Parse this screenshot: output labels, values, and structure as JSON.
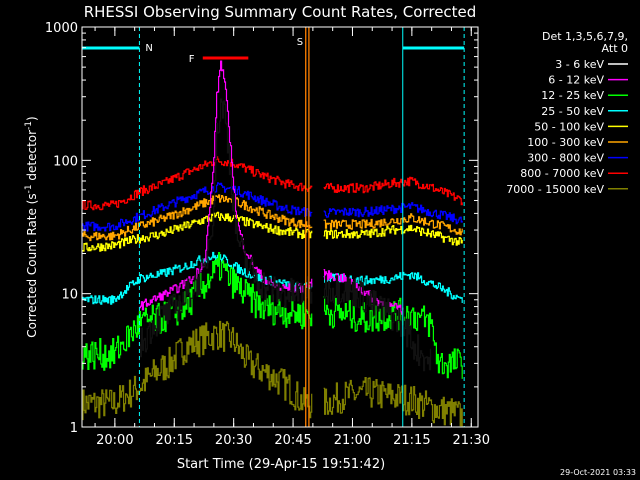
{
  "chart_data": {
    "type": "line",
    "title": "RHESSI Observing Summary Count Rates, Corrected",
    "xlabel": "Start Time (29-Apr-15 19:51:42)",
    "ylabel_main": "Corrected Count Rate (s",
    "ylabel_sup1": "-1",
    "ylabel_mid": " detector",
    "ylabel_sup2": "-1",
    "ylabel_end": ")",
    "yscale": "log",
    "ylim": [
      1,
      1000
    ],
    "xlim_minutes": [
      0,
      100
    ],
    "yticks": [
      {
        "v": 1,
        "label": "1"
      },
      {
        "v": 10,
        "label": "10"
      },
      {
        "v": 100,
        "label": "100"
      },
      {
        "v": 1000,
        "label": "1000"
      }
    ],
    "xticks": [
      {
        "m": 8.3,
        "label": "20:00"
      },
      {
        "m": 23.3,
        "label": "20:15"
      },
      {
        "m": 38.3,
        "label": "20:30"
      },
      {
        "m": 53.3,
        "label": "20:45"
      },
      {
        "m": 68.3,
        "label": "21:00"
      },
      {
        "m": 83.3,
        "label": "21:15"
      },
      {
        "m": 98.3,
        "label": "21:30"
      }
    ],
    "legend_header": [
      "Det 1,3,5,6,7,9,",
      "Att 0"
    ],
    "legend_placement": "right",
    "timestamp": "29-Oct-2021 03:33",
    "annotations": {
      "night": {
        "label": "N",
        "color": "#00ffff",
        "intervals": [
          [
            0,
            14.5
          ],
          [
            81,
            96.5
          ]
        ]
      },
      "flare": {
        "label": "F",
        "color": "#ff0000",
        "start": 30.5,
        "end": 42
      },
      "saa": {
        "label": "S",
        "color": "#ff8000",
        "times": [
          56.5,
          57.3
        ]
      }
    },
    "gaps": [
      [
        58,
        61
      ]
    ],
    "series": [
      {
        "name": "3 - 6 keV",
        "color": "#000000",
        "points": [
          [
            14.5,
            4
          ],
          [
            18,
            6
          ],
          [
            24,
            8
          ],
          [
            28,
            11
          ],
          [
            31,
            15
          ],
          [
            33,
            40
          ],
          [
            34,
            150
          ],
          [
            35,
            270
          ],
          [
            36,
            230
          ],
          [
            37,
            120
          ],
          [
            38,
            55
          ],
          [
            39,
            28
          ],
          [
            41,
            18
          ],
          [
            44,
            13
          ],
          [
            47,
            11
          ],
          [
            50,
            10
          ],
          [
            53,
            10
          ],
          [
            56,
            10
          ],
          [
            61,
            11
          ],
          [
            66,
            11
          ],
          [
            70,
            10
          ],
          [
            74,
            8
          ],
          [
            78,
            7
          ],
          [
            81,
            6
          ],
          [
            84,
            4
          ],
          [
            86,
            3.5
          ],
          [
            88,
            3
          ]
        ]
      },
      {
        "name": "6 - 12 keV",
        "color": "#ff00ff",
        "points": [
          [
            14.5,
            8
          ],
          [
            18,
            9
          ],
          [
            24,
            11
          ],
          [
            28,
            13
          ],
          [
            31,
            18
          ],
          [
            33,
            80
          ],
          [
            34,
            300
          ],
          [
            35,
            550
          ],
          [
            36,
            380
          ],
          [
            37,
            180
          ],
          [
            38,
            80
          ],
          [
            39,
            35
          ],
          [
            41,
            22
          ],
          [
            44,
            15
          ],
          [
            47,
            12
          ],
          [
            50,
            11
          ],
          [
            53,
            11
          ],
          [
            56,
            11
          ],
          [
            61,
            14
          ],
          [
            66,
            13
          ],
          [
            70,
            11
          ],
          [
            74,
            9
          ],
          [
            78,
            8
          ],
          [
            81,
            7.5
          ]
        ]
      },
      {
        "name": "12 - 25 keV",
        "color": "#00ff00",
        "points": [
          [
            0,
            3.5
          ],
          [
            8,
            3.5
          ],
          [
            14.5,
            6
          ],
          [
            20,
            6.5
          ],
          [
            26,
            8
          ],
          [
            30,
            11
          ],
          [
            33,
            14
          ],
          [
            35,
            16
          ],
          [
            37,
            13
          ],
          [
            41,
            10
          ],
          [
            45,
            8
          ],
          [
            50,
            7.5
          ],
          [
            56,
            7
          ],
          [
            61,
            7.5
          ],
          [
            66,
            7
          ],
          [
            72,
            6.5
          ],
          [
            78,
            7
          ],
          [
            83,
            7
          ],
          [
            88,
            6
          ],
          [
            90,
            3
          ],
          [
            96,
            3
          ]
        ]
      },
      {
        "name": "25 - 50 keV",
        "color": "#00ffff",
        "points": [
          [
            0,
            9
          ],
          [
            8,
            9
          ],
          [
            14.5,
            13
          ],
          [
            20,
            14
          ],
          [
            26,
            16
          ],
          [
            30,
            18
          ],
          [
            33,
            19
          ],
          [
            36,
            18
          ],
          [
            40,
            15
          ],
          [
            45,
            13
          ],
          [
            50,
            12
          ],
          [
            56,
            11
          ],
          [
            61,
            13
          ],
          [
            66,
            13
          ],
          [
            72,
            12.5
          ],
          [
            78,
            13
          ],
          [
            83,
            14
          ],
          [
            88,
            12
          ],
          [
            96,
            9
          ]
        ]
      },
      {
        "name": "50 - 100 keV",
        "color": "#ffff00",
        "points": [
          [
            0,
            22
          ],
          [
            8,
            23
          ],
          [
            14.5,
            26
          ],
          [
            20,
            28
          ],
          [
            26,
            32
          ],
          [
            31,
            36
          ],
          [
            34,
            38
          ],
          [
            38,
            37
          ],
          [
            42,
            34
          ],
          [
            47,
            31
          ],
          [
            52,
            29
          ],
          [
            56,
            28
          ],
          [
            61,
            28
          ],
          [
            66,
            28
          ],
          [
            72,
            28
          ],
          [
            78,
            30
          ],
          [
            83,
            31
          ],
          [
            88,
            28
          ],
          [
            96,
            24
          ]
        ]
      },
      {
        "name": "100 - 300 keV",
        "color": "#ffa500",
        "points": [
          [
            0,
            27
          ],
          [
            8,
            27
          ],
          [
            14.5,
            32
          ],
          [
            20,
            36
          ],
          [
            26,
            42
          ],
          [
            31,
            48
          ],
          [
            34,
            52
          ],
          [
            38,
            50
          ],
          [
            42,
            45
          ],
          [
            47,
            39
          ],
          [
            52,
            35
          ],
          [
            56,
            33
          ],
          [
            61,
            33
          ],
          [
            66,
            33
          ],
          [
            72,
            33
          ],
          [
            78,
            35
          ],
          [
            83,
            37
          ],
          [
            88,
            34
          ],
          [
            96,
            29
          ]
        ]
      },
      {
        "name": "300 - 800 keV",
        "color": "#0000ff",
        "points": [
          [
            0,
            32
          ],
          [
            8,
            32
          ],
          [
            14.5,
            38
          ],
          [
            20,
            44
          ],
          [
            26,
            52
          ],
          [
            31,
            59
          ],
          [
            34,
            63
          ],
          [
            38,
            61
          ],
          [
            42,
            55
          ],
          [
            47,
            48
          ],
          [
            52,
            43
          ],
          [
            56,
            41
          ],
          [
            61,
            40
          ],
          [
            66,
            41
          ],
          [
            72,
            41
          ],
          [
            78,
            43
          ],
          [
            83,
            45
          ],
          [
            88,
            41
          ],
          [
            96,
            35
          ]
        ]
      },
      {
        "name": "800 - 7000 keV",
        "color": "#ff0000",
        "points": [
          [
            0,
            46
          ],
          [
            8,
            46
          ],
          [
            14.5,
            58
          ],
          [
            20,
            66
          ],
          [
            26,
            80
          ],
          [
            31,
            92
          ],
          [
            34,
            100
          ],
          [
            38,
            96
          ],
          [
            42,
            85
          ],
          [
            47,
            74
          ],
          [
            52,
            66
          ],
          [
            56,
            63
          ],
          [
            61,
            62
          ],
          [
            66,
            62
          ],
          [
            72,
            62
          ],
          [
            78,
            67
          ],
          [
            83,
            70
          ],
          [
            88,
            63
          ],
          [
            96,
            50
          ]
        ]
      },
      {
        "name": "7000 - 15000 keV",
        "color": "#808000",
        "points": [
          [
            0,
            1.5
          ],
          [
            8,
            1.5
          ],
          [
            14.5,
            2
          ],
          [
            18,
            2.5
          ],
          [
            22,
            3
          ],
          [
            26,
            4
          ],
          [
            30,
            4.5
          ],
          [
            34,
            5
          ],
          [
            38,
            4.5
          ],
          [
            42,
            3
          ],
          [
            47,
            2.5
          ],
          [
            52,
            2
          ],
          [
            56,
            1.5
          ],
          [
            61,
            1.5
          ],
          [
            66,
            1.7
          ],
          [
            72,
            1.8
          ],
          [
            78,
            1.7
          ],
          [
            83,
            1.6
          ],
          [
            88,
            1.4
          ],
          [
            93,
            1.3
          ],
          [
            96,
            1.2
          ]
        ]
      }
    ]
  }
}
